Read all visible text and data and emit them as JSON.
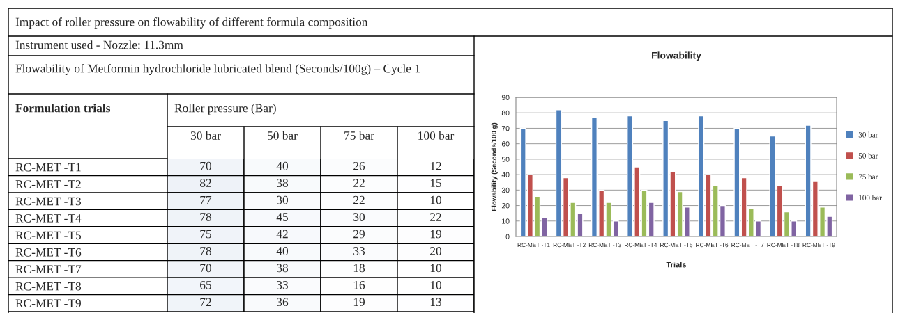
{
  "chart_data": [
    {
      "type": "heatmap",
      "title": "Impact of roller pressure on flowability of different formula composition",
      "annotations": [
        "Instrument used - Nozzle: 11.3mm",
        "Flowability of Metformin hydrochloride lubricated blend (Seconds/100g) – Cycle 1",
        "Formulation trials",
        "Roller pressure (Bar)"
      ],
      "categories": [
        "30 bar",
        "50 bar",
        "75 bar",
        "100 bar"
      ],
      "y_categories": [
        "RC-MET -T1",
        "RC-MET -T2",
        "RC-MET -T3",
        "RC-MET -T4",
        "RC-MET -T5",
        "RC-MET -T6",
        "RC-MET -T7",
        "RC-MET -T8",
        "RC-MET -T9"
      ],
      "cells": [
        [
          70,
          40,
          26,
          12
        ],
        [
          82,
          38,
          22,
          15
        ],
        [
          77,
          30,
          22,
          10
        ],
        [
          78,
          45,
          30,
          22
        ],
        [
          75,
          42,
          29,
          19
        ],
        [
          78,
          40,
          33,
          20
        ],
        [
          70,
          38,
          18,
          10
        ],
        [
          65,
          33,
          16,
          10
        ],
        [
          72,
          36,
          19,
          13
        ]
      ],
      "cell_labels": [
        [
          "70",
          "40",
          "26",
          "12"
        ],
        [
          "82",
          "38",
          "22",
          "15"
        ],
        [
          "77",
          "30",
          "22",
          "10"
        ],
        [
          "78",
          "45",
          "30",
          "22"
        ],
        [
          "75",
          "42",
          "29",
          "19"
        ],
        [
          "78",
          "40",
          "33",
          "20"
        ],
        [
          "70",
          "38",
          "18",
          "10"
        ],
        [
          "65",
          "33",
          "16",
          "10"
        ],
        [
          "72",
          "36",
          "19",
          "13"
        ]
      ]
    },
    {
      "type": "bar",
      "title": "Flowability",
      "xlabel": "Trials",
      "ylabel": "Flowability (Seconds/100 g)",
      "categories": [
        "RC-MET -T1",
        "RC-MET -T2",
        "RC-MET -T3",
        "RC-MET -T4",
        "RC-MET -T5",
        "RC-MET -T6",
        "RC-MET -T7",
        "RC-MET -T8",
        "RC-MET -T9"
      ],
      "series": [
        {
          "name": "30 bar",
          "color": "#4f81bd",
          "values": [
            70,
            82,
            77,
            78,
            75,
            78,
            70,
            65,
            72
          ]
        },
        {
          "name": "50 bar",
          "color": "#c0504d",
          "values": [
            40,
            38,
            30,
            45,
            42,
            40,
            38,
            33,
            36
          ]
        },
        {
          "name": "75 bar",
          "color": "#9bbb59",
          "values": [
            26,
            22,
            22,
            30,
            29,
            33,
            18,
            16,
            19
          ]
        },
        {
          "name": "100 bar",
          "color": "#8064a2",
          "values": [
            12,
            15,
            10,
            22,
            19,
            20,
            10,
            10,
            13
          ]
        }
      ],
      "ylim": [
        0,
        90
      ],
      "yticks": [
        0,
        10,
        20,
        30,
        40,
        50,
        60,
        70,
        80,
        90
      ],
      "grid": "y",
      "legend": "right"
    }
  ]
}
